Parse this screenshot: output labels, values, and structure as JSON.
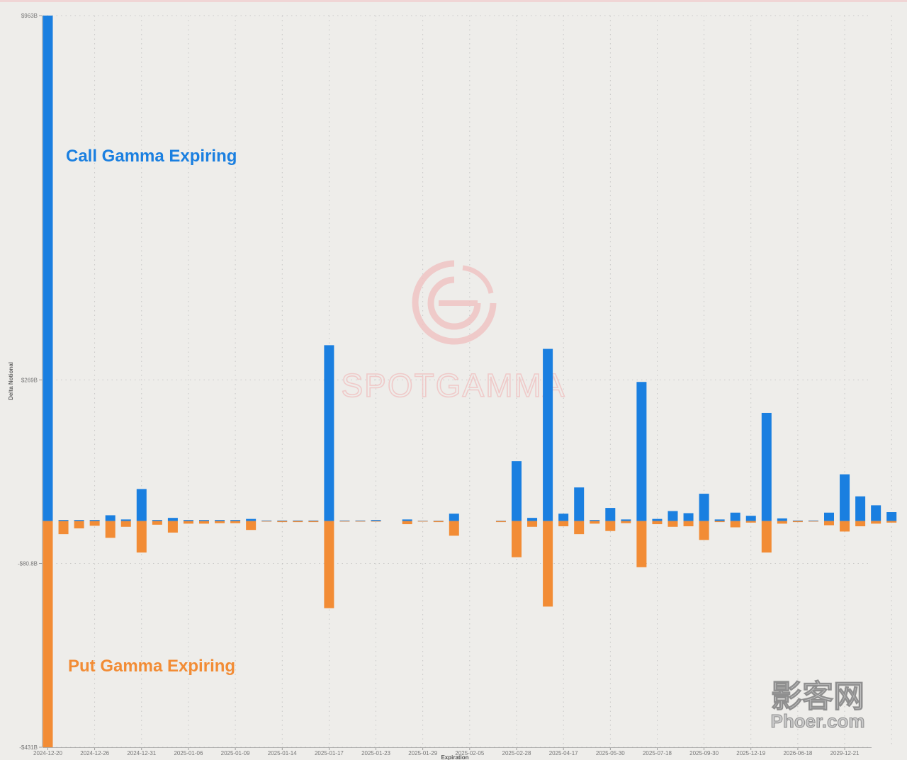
{
  "colors": {
    "call": "#1a7fe0",
    "put": "#f28c35",
    "background": "#eeedea",
    "grid": "#bdbdbd",
    "watermark": "#f0c4c4"
  },
  "watermark": {
    "brand": "SPOTGAMMA",
    "icon": "spotgamma-logo-icon",
    "site_logo": "影客网 Phoer.com"
  },
  "chart_data": {
    "type": "bar",
    "ylabel": "Delta Notional",
    "xlabel": "Expiration",
    "ylim": [
      -431,
      963
    ],
    "y_unit": "B",
    "y_ticks": [
      {
        "value": 963,
        "label": "$963B"
      },
      {
        "value": 269,
        "label": "$269B"
      },
      {
        "value": -80.8,
        "label": "-$80.8B"
      },
      {
        "value": -431,
        "label": "-$431B"
      }
    ],
    "x_tick_labels": [
      {
        "index": 0,
        "label": "2024-12-20"
      },
      {
        "index": 3,
        "label": "2024-12-26"
      },
      {
        "index": 6,
        "label": "2024-12-31"
      },
      {
        "index": 9,
        "label": "2025-01-06"
      },
      {
        "index": 12,
        "label": "2025-01-09"
      },
      {
        "index": 15,
        "label": "2025-01-14"
      },
      {
        "index": 18,
        "label": "2025-01-17"
      },
      {
        "index": 21,
        "label": "2025-01-23"
      },
      {
        "index": 24,
        "label": "2025-01-29"
      },
      {
        "index": 27,
        "label": "2025-02-05"
      },
      {
        "index": 30,
        "label": "2025-02-28"
      },
      {
        "index": 33,
        "label": "2025-04-17"
      },
      {
        "index": 36,
        "label": "2025-05-30"
      },
      {
        "index": 39,
        "label": "2025-07-18"
      },
      {
        "index": 42,
        "label": "2025-09-30"
      },
      {
        "index": 45,
        "label": "2025-12-19"
      },
      {
        "index": 48,
        "label": "2026-06-18"
      },
      {
        "index": 51,
        "label": "2029-12-21"
      }
    ],
    "series": [
      {
        "name": "Call Gamma Expiring",
        "values": [
          963,
          2,
          2,
          2,
          11,
          3,
          61,
          2,
          6,
          2,
          2,
          2,
          2,
          4,
          1,
          1,
          1,
          1,
          335,
          1,
          1,
          2,
          0,
          3,
          0.5,
          0.5,
          14,
          0,
          0,
          0.5,
          114,
          6,
          328,
          14,
          64,
          2,
          25,
          3,
          265,
          4,
          19,
          15,
          52,
          3,
          16,
          10,
          206,
          5,
          1,
          1,
          16,
          89,
          47,
          30,
          17
        ]
      },
      {
        "name": "Put Gamma Expiring",
        "values": [
          -431,
          -25,
          -14,
          -9,
          -32,
          -11,
          -60,
          -7,
          -22,
          -5,
          -5,
          -4,
          -4,
          -17,
          -1,
          -2,
          -2,
          -2,
          -166,
          -1,
          -1,
          -1,
          0,
          -6,
          -1,
          -2,
          -28,
          0,
          0,
          -2,
          -69,
          -11,
          -163,
          -10,
          -25,
          -5,
          -19,
          -4,
          -88,
          -6,
          -11,
          -10,
          -36,
          -2,
          -12,
          -3,
          -60,
          -5,
          -2,
          -1,
          -8,
          -20,
          -10,
          -5,
          -3
        ]
      }
    ],
    "annotations": [
      {
        "text": "Call Gamma Expiring",
        "series": "call"
      },
      {
        "text": "Put Gamma Expiring",
        "series": "put"
      }
    ],
    "grid": true
  }
}
